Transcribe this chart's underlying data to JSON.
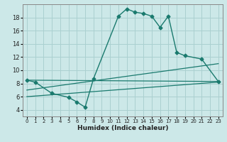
{
  "xlabel": "Humidex (Indice chaleur)",
  "xlim": [
    -0.5,
    23.5
  ],
  "ylim": [
    3,
    20
  ],
  "yticks": [
    4,
    6,
    8,
    10,
    12,
    14,
    16,
    18
  ],
  "xticks": [
    0,
    1,
    2,
    3,
    4,
    5,
    6,
    7,
    8,
    9,
    10,
    11,
    12,
    13,
    14,
    15,
    16,
    17,
    18,
    19,
    20,
    21,
    22,
    23
  ],
  "bg_color": "#cce8e8",
  "grid_color": "#aad0d0",
  "line_color": "#1a7a6e",
  "main_line_x": [
    0,
    1,
    3,
    5,
    6,
    7,
    8,
    11,
    12,
    13,
    14,
    15,
    16,
    17,
    18,
    19,
    21,
    23
  ],
  "main_line_y": [
    8.5,
    8.2,
    6.5,
    5.9,
    5.2,
    4.4,
    8.7,
    18.2,
    19.3,
    18.8,
    18.6,
    18.2,
    16.5,
    18.2,
    12.7,
    12.2,
    11.7,
    8.3
  ],
  "line2_x": [
    0,
    23
  ],
  "line2_y": [
    8.5,
    8.3
  ],
  "line3_x": [
    0,
    23
  ],
  "line3_y": [
    6.0,
    8.2
  ],
  "line4_x": [
    0,
    23
  ],
  "line4_y": [
    7.0,
    11.0
  ]
}
